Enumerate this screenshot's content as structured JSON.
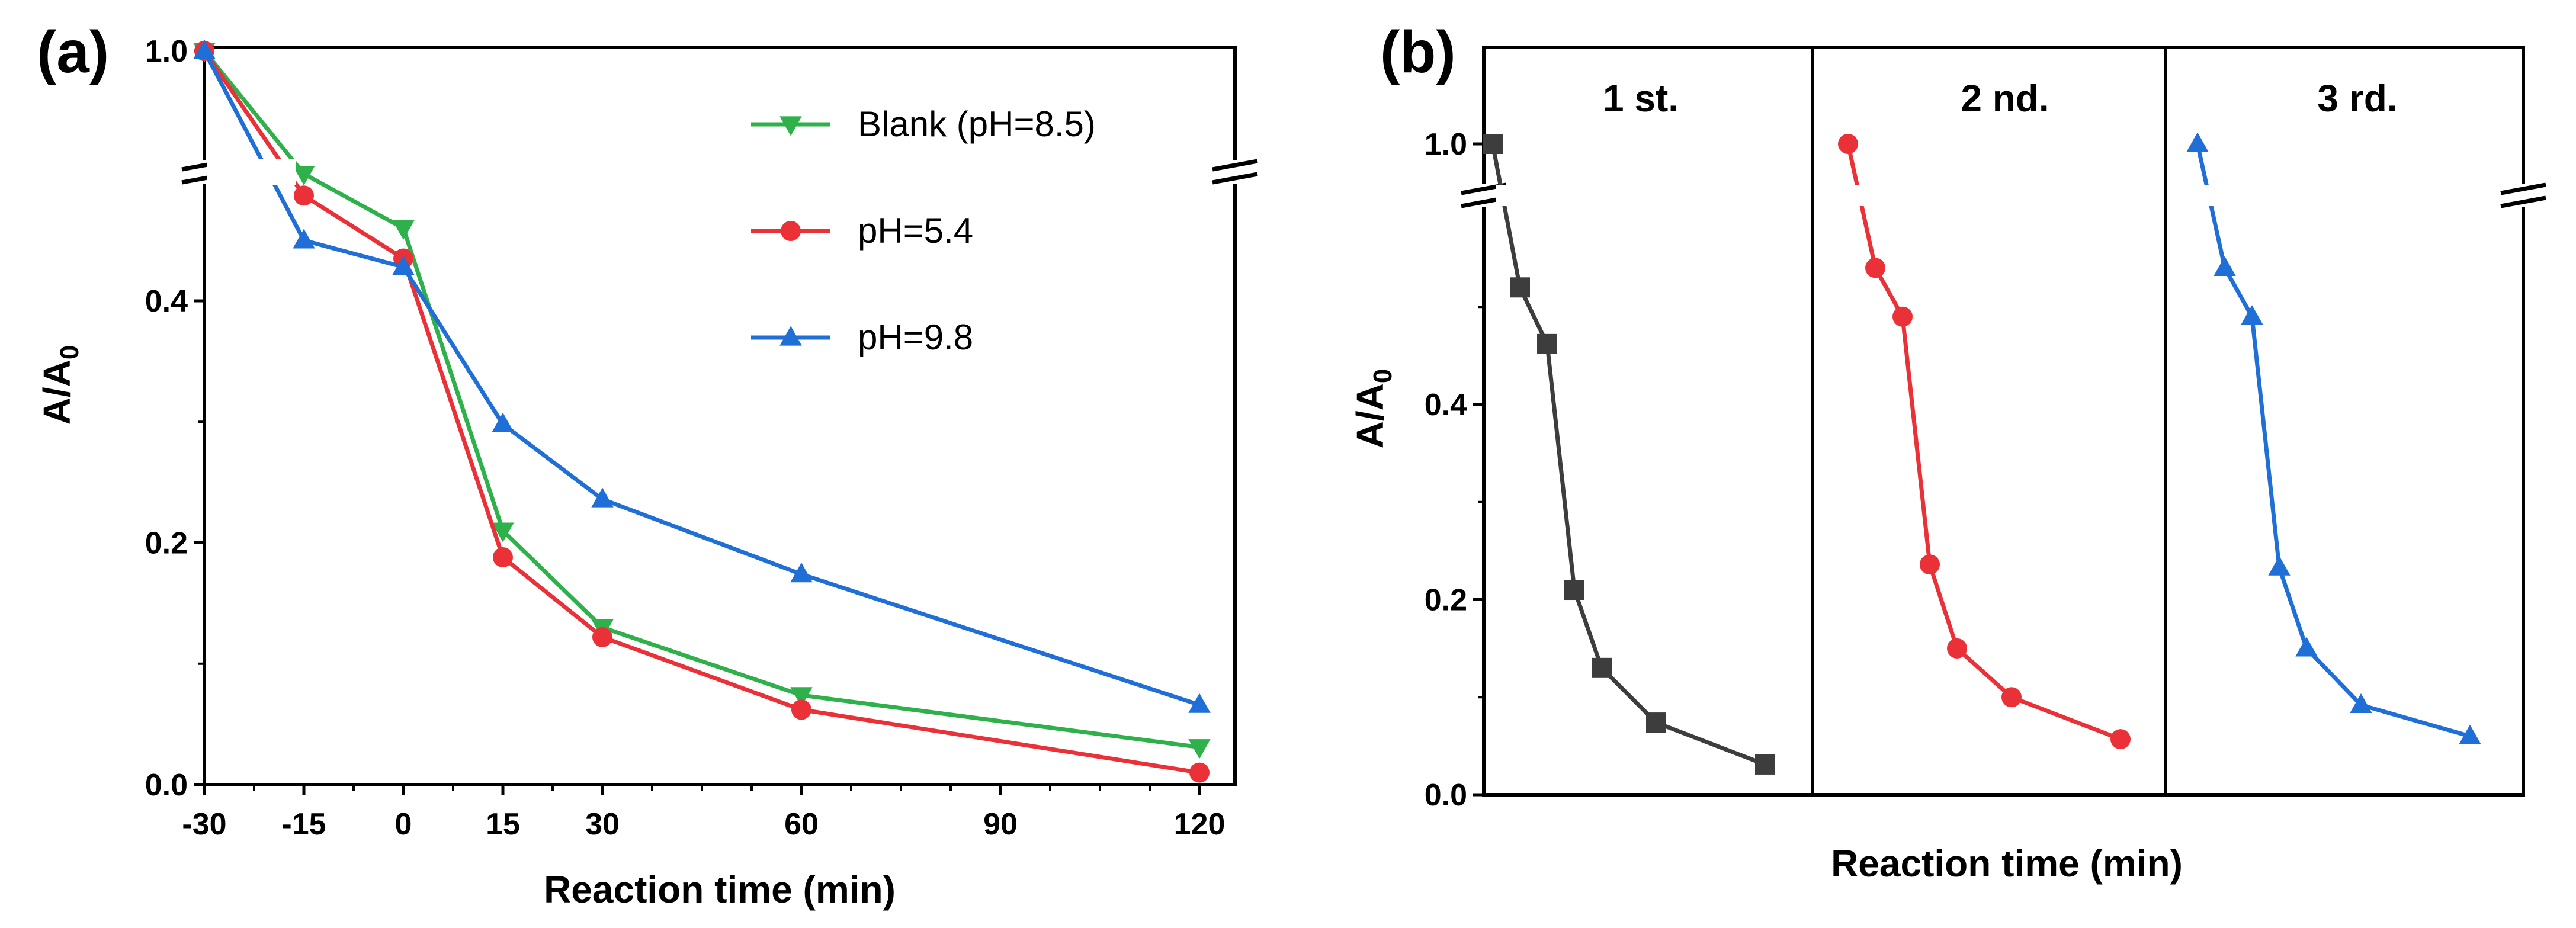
{
  "colors": {
    "blank": "#2eb14a",
    "ph54": "#eb3138",
    "ph98": "#1f6fd6",
    "run1": "#3d3d3d",
    "run2": "#eb3138",
    "run3": "#1f6fd6",
    "axis": "#000000"
  },
  "chart_data": [
    {
      "panel_label": "(a)",
      "type": "line",
      "xlabel": "Reaction time (min)",
      "ylabel_main": "A/A",
      "ylabel_sub": "0",
      "x_ticks": [
        -30,
        -15,
        0,
        15,
        30,
        60,
        90,
        120
      ],
      "x_tick_labels": [
        "-30",
        "-15",
        "0",
        "15",
        "30",
        "60",
        "90",
        "120"
      ],
      "y_ticks": [
        0.0,
        0.2,
        0.4,
        1.0
      ],
      "y_tick_labels": [
        "0.0",
        "0.2",
        "0.4",
        "1.0"
      ],
      "y_axis_break": [
        0.6,
        0.95
      ],
      "legend_position": "top-right",
      "x": [
        -30,
        -15,
        0,
        15,
        30,
        60,
        120
      ],
      "series": [
        {
          "name": "Blank (pH=8.5)",
          "marker": "triangle-down",
          "color_key": "blank",
          "values": [
            1.0,
            0.505,
            0.46,
            0.21,
            0.13,
            0.074,
            0.031
          ]
        },
        {
          "name": "pH=5.4",
          "marker": "circle",
          "color_key": "ph54",
          "values": [
            1.0,
            0.487,
            0.435,
            0.188,
            0.122,
            0.062,
            0.01
          ]
        },
        {
          "name": "pH=9.8",
          "marker": "triangle-up",
          "color_key": "ph98",
          "values": [
            1.0,
            0.45,
            0.428,
            0.298,
            0.236,
            0.174,
            0.066
          ]
        }
      ]
    },
    {
      "panel_label": "(b)",
      "type": "line",
      "xlabel": "Reaction time (min)",
      "ylabel_main": "A/A",
      "ylabel_sub": "0",
      "y_ticks": [
        0.0,
        0.2,
        0.4,
        1.0
      ],
      "y_tick_labels": [
        "0.0",
        "0.2",
        "0.4",
        "1.0"
      ],
      "y_axis_break": [
        0.6,
        0.95
      ],
      "x": [
        -30,
        -15,
        0,
        15,
        30,
        60,
        120
      ],
      "runs": [
        {
          "name": "1 st.",
          "marker": "square",
          "color_key": "run1",
          "values": [
            1.0,
            0.52,
            0.462,
            0.21,
            0.13,
            0.074,
            0.031
          ]
        },
        {
          "name": "2 nd.",
          "marker": "circle",
          "color_key": "run2",
          "values": [
            1.0,
            0.54,
            0.49,
            0.236,
            0.15,
            0.1,
            0.057
          ]
        },
        {
          "name": "3 rd.",
          "marker": "triangle-up",
          "color_key": "run3",
          "values": [
            1.0,
            0.54,
            0.49,
            0.233,
            0.15,
            0.092,
            0.06
          ]
        }
      ]
    }
  ]
}
